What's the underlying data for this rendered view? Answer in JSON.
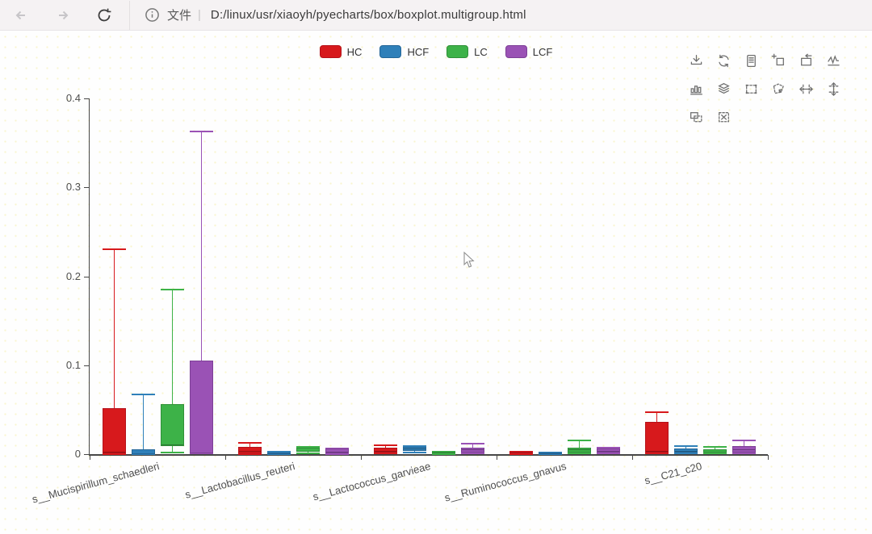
{
  "browser": {
    "back": "back",
    "forward": "forward",
    "refresh": "refresh",
    "info": "page info",
    "file_label": "文件",
    "separator": "|",
    "url": "D:/linux/usr/xiaoyh/pyecharts/box/boxplot.multigroup.html"
  },
  "toolbox": {
    "icons": [
      "save-as-image",
      "restore",
      "data-view",
      "data-zoom",
      "data-zoom-reset",
      "magic-type-line",
      "magic-type-bar",
      "magic-type-stack",
      "brush-rect",
      "brush-polygon",
      "brush-line-x",
      "brush-line-y",
      "brush-keep",
      "brush-clear"
    ]
  },
  "chart_data": {
    "type": "boxplot",
    "title": "",
    "xlabel": "",
    "ylabel": "",
    "grid": false,
    "legend_position": "top-center",
    "categories": [
      "s__Mucispirillum_schaedleri",
      "s__Lactobacillus_reuteri",
      "s__Lactococcus_garvieae",
      "s__Ruminococcus_gnavus",
      "s__C21_c20"
    ],
    "yaxis": {
      "labels": [
        "0",
        "0.1",
        "0.2",
        "0.3",
        "0.4"
      ],
      "values": [
        0,
        0.1,
        0.2,
        0.3,
        0.4
      ],
      "ylim": [
        0,
        0.4
      ]
    },
    "series": [
      {
        "name": "HC",
        "color": "#d7191c",
        "border": "#b5121a",
        "boxes": [
          [
            0,
            0.001,
            0.003,
            0.052,
            0.23
          ],
          [
            0,
            0.001,
            0.004,
            0.008,
            0.013
          ],
          [
            0.001,
            0.002,
            0.004,
            0.007,
            0.01
          ],
          [
            0,
            0.001,
            0.002,
            0.003,
            0.003
          ],
          [
            0.001,
            0.002,
            0.004,
            0.036,
            0.047
          ]
        ]
      },
      {
        "name": "HCF",
        "color": "#2f80b9",
        "border": "#246697",
        "boxes": [
          [
            0,
            0,
            0.001,
            0.005,
            0.067
          ],
          [
            0,
            0,
            0.001,
            0.002,
            0.003
          ],
          [
            0.002,
            0.004,
            0.006,
            0.008,
            0.009
          ],
          [
            0,
            0,
            0.001,
            0.002,
            0.002
          ],
          [
            0.001,
            0.002,
            0.004,
            0.006,
            0.009
          ]
        ]
      },
      {
        "name": "LC",
        "color": "#3db248",
        "border": "#2f9038",
        "boxes": [
          [
            0.002,
            0.009,
            0.011,
            0.056,
            0.185
          ],
          [
            0.001,
            0.003,
            0.006,
            0.007,
            0.008
          ],
          [
            0,
            0.001,
            0.002,
            0.003,
            0.003
          ],
          [
            0.001,
            0.002,
            0.005,
            0.007,
            0.015
          ],
          [
            0.001,
            0.002,
            0.003,
            0.005,
            0.008
          ]
        ]
      },
      {
        "name": "LCF",
        "color": "#9a52b5",
        "border": "#7d3f96",
        "boxes": [
          [
            0.001,
            0.001,
            0.002,
            0.105,
            0.363
          ],
          [
            0,
            0.001,
            0.003,
            0.006,
            0.006
          ],
          [
            0.001,
            0.002,
            0.005,
            0.007,
            0.012
          ],
          [
            0.001,
            0.002,
            0.004,
            0.006,
            0.007
          ],
          [
            0.001,
            0.002,
            0.005,
            0.009,
            0.015
          ]
        ]
      }
    ]
  }
}
